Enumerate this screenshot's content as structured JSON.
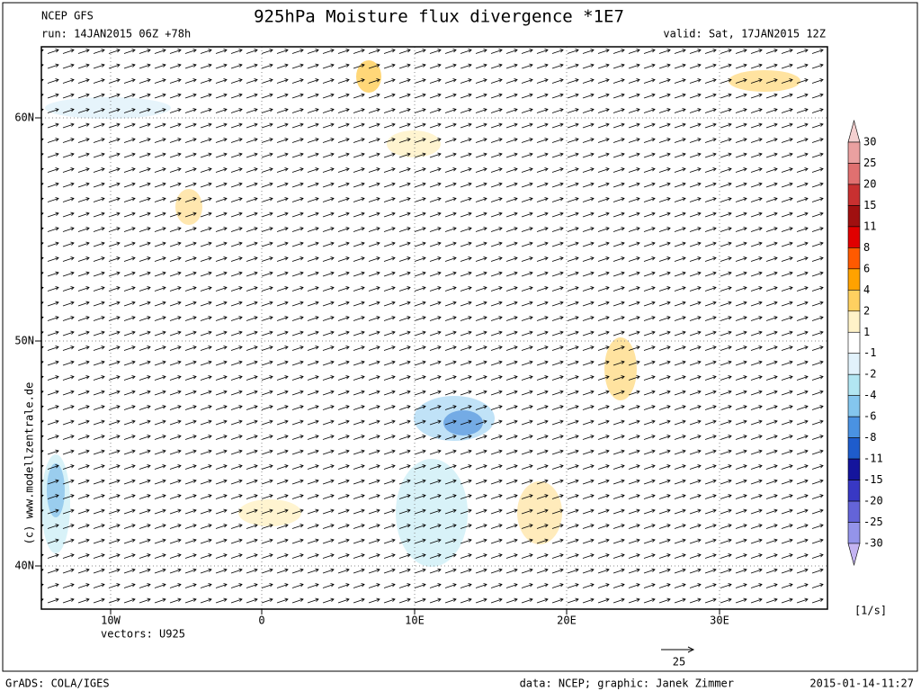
{
  "header": {
    "source": "NCEP GFS",
    "title": "925hPa Moisture flux divergence *1E7",
    "run": "run: 14JAN2015 06Z +78h",
    "valid": "valid: Sat, 17JAN2015 12Z"
  },
  "map": {
    "lat_labels": [
      "60N",
      "50N",
      "40N"
    ],
    "lon_labels": [
      "10W",
      "0",
      "10E",
      "20E",
      "30E"
    ],
    "vectors_label": "vectors: U925",
    "watermark": "(c) www.modellzentrale.de"
  },
  "colorbar": {
    "levels": [
      "30",
      "25",
      "20",
      "15",
      "11",
      "8",
      "6",
      "4",
      "2",
      "1",
      "-1",
      "-2",
      "-4",
      "-6",
      "-8",
      "-11",
      "-15",
      "-20",
      "-25",
      "-30"
    ],
    "colors": [
      "#f4d0d0",
      "#eaa0a0",
      "#e07070",
      "#c83030",
      "#a01010",
      "#e00000",
      "#ff5a00",
      "#ffa200",
      "#ffd060",
      "#fff2c8",
      "#ffffff",
      "#e2f2fb",
      "#b2e6f2",
      "#84c6ee",
      "#4a92e2",
      "#1e5ccc",
      "#14149c",
      "#3838c4",
      "#6464d8",
      "#9494ea",
      "#c4b4f2"
    ],
    "unit": "[1/s]"
  },
  "reference_vector": {
    "label": "25"
  },
  "footer": {
    "left": "GrADS: COLA/IGES",
    "credit": "data: NCEP; graphic: Janek Zimmer",
    "timestamp": "2015-01-14-11:27"
  }
}
